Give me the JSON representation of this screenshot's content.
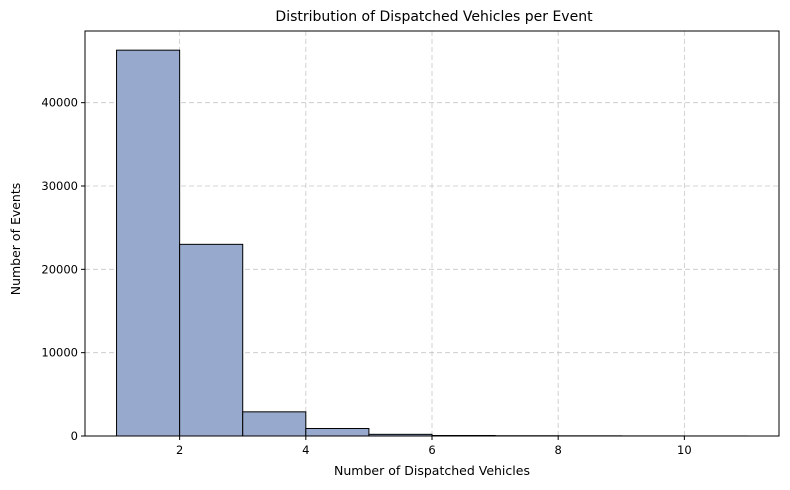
{
  "chart_data": {
    "type": "bar",
    "title": "Distribution of Dispatched Vehicles per Event",
    "xlabel": "Number of Dispatched Vehicles",
    "ylabel": "Number of Events",
    "bin_edges": [
      1,
      2,
      3,
      4,
      5,
      6,
      7,
      8,
      9,
      10,
      11
    ],
    "values": [
      46300,
      23000,
      2900,
      900,
      200,
      60,
      30,
      20,
      10,
      5
    ],
    "xlim": [
      0.5,
      11.5
    ],
    "ylim": [
      0,
      48600
    ],
    "xticks": [
      2,
      4,
      6,
      8,
      10
    ],
    "yticks": [
      0,
      10000,
      20000,
      30000,
      40000
    ],
    "grid": true,
    "bar_color": "#97a9cc",
    "edge_color": "#000000"
  }
}
